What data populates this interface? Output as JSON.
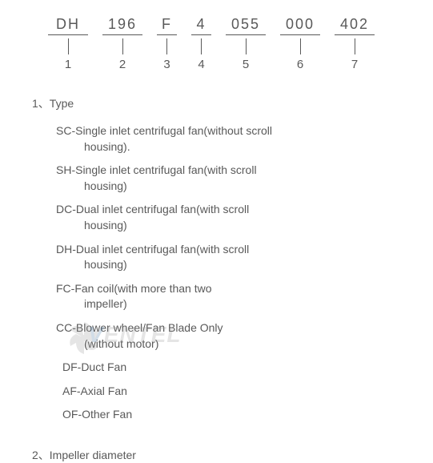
{
  "code": {
    "segments": [
      {
        "value": "DH",
        "num": "1",
        "cls": "seg-dh"
      },
      {
        "value": "196",
        "num": "2",
        "cls": "seg-196"
      },
      {
        "value": "F",
        "num": "3",
        "cls": "seg-f"
      },
      {
        "value": "4",
        "num": "4",
        "cls": "seg-4"
      },
      {
        "value": "055",
        "num": "5",
        "cls": "seg-055"
      },
      {
        "value": "000",
        "num": "6",
        "cls": "seg-000"
      },
      {
        "value": "402",
        "num": "7",
        "cls": "seg-402"
      }
    ]
  },
  "sections": {
    "type_title": "1、Type",
    "impeller_title": "2、Impeller diameter"
  },
  "types": [
    {
      "main": "SC-Single inlet centrifugal fan(without scroll",
      "sub": "housing)."
    },
    {
      "main": "SH-Single inlet centrifugal fan(with scroll",
      "sub": "housing)"
    },
    {
      "main": "DC-Dual inlet centrifugal fan(with scroll",
      "sub": "housing)"
    },
    {
      "main": "DH-Dual inlet centrifugal fan(with scroll",
      "sub": "housing)"
    },
    {
      "main": "FC-Fan coil(with more than two",
      "sub": "impeller)"
    },
    {
      "main": "CC-Blower wheel/Fan Blade Only",
      "sub": "(without motor)"
    },
    {
      "main": "DF-Duct Fan",
      "sub": null,
      "indent": true
    },
    {
      "main": "AF-Axial Fan",
      "sub": null,
      "indent": true
    },
    {
      "main": "OF-Other Fan",
      "sub": null,
      "indent": true
    }
  ],
  "watermark": {
    "text_v": "V",
    "text_entel": "ENTEL"
  }
}
